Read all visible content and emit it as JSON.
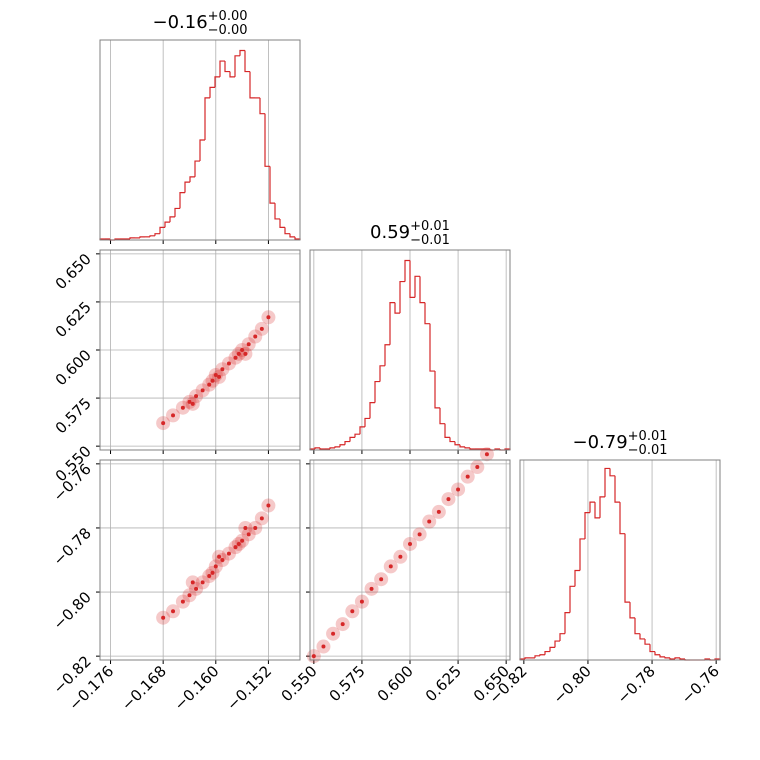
{
  "chart_data": {
    "type": "corner",
    "color": "#d62728",
    "grid": true,
    "params": [
      {
        "title": "−0.16",
        "title_sup": "+0.00",
        "title_sub": "−0.00",
        "lim": [
          -0.1776,
          -0.1472
        ],
        "ticks": [
          {
            "value": -0.176,
            "label": "−0.176"
          },
          {
            "value": -0.168,
            "label": "−0.168"
          },
          {
            "value": -0.16,
            "label": "−0.160"
          },
          {
            "value": -0.152,
            "label": "−0.152"
          }
        ],
        "hist": {
          "ylim": [
            0,
            190
          ],
          "bins": [
            -0.1776,
            -0.17684,
            -0.17608,
            -0.17532,
            -0.17456,
            -0.1738,
            -0.17304,
            -0.17228,
            -0.17152,
            -0.17076,
            -0.17,
            -0.16924,
            -0.16848,
            -0.16772,
            -0.16696,
            -0.1662,
            -0.16544,
            -0.16468,
            -0.16392,
            -0.16316,
            -0.1624,
            -0.16164,
            -0.16088,
            -0.16012,
            -0.15936,
            -0.1586,
            -0.15784,
            -0.15708,
            -0.15632,
            -0.15556,
            -0.1548,
            -0.15404,
            -0.15328,
            -0.15252,
            -0.15176,
            -0.151,
            -0.15024,
            -0.14948,
            -0.14872,
            -0.14796,
            -0.1472
          ],
          "counts": [
            1,
            1,
            0,
            1,
            1,
            1,
            2,
            2,
            3,
            3,
            4,
            6,
            12,
            17,
            22,
            30,
            45,
            55,
            60,
            75,
            95,
            135,
            145,
            155,
            170,
            160,
            155,
            175,
            180,
            160,
            135,
            135,
            120,
            70,
            35,
            20,
            12,
            6,
            3,
            1
          ]
        }
      },
      {
        "title": "0.59",
        "title_sup": "+0.01",
        "title_sub": "−0.01",
        "lim": [
          0.548,
          0.652
        ],
        "ticks": [
          {
            "value": 0.55,
            "label": "0.550"
          },
          {
            "value": 0.575,
            "label": "0.575"
          },
          {
            "value": 0.6,
            "label": "0.600"
          },
          {
            "value": 0.625,
            "label": "0.625"
          },
          {
            "value": 0.65,
            "label": "0.650"
          }
        ],
        "hist": {
          "ylim": [
            0,
            190
          ],
          "bins": [
            0.548,
            0.5506,
            0.5532,
            0.5558,
            0.5584,
            0.561,
            0.5636,
            0.5662,
            0.5688,
            0.5714,
            0.574,
            0.5766,
            0.5792,
            0.5818,
            0.5844,
            0.587,
            0.5896,
            0.5922,
            0.5948,
            0.5974,
            0.6,
            0.6026,
            0.6052,
            0.6078,
            0.6104,
            0.613,
            0.6156,
            0.6182,
            0.6208,
            0.6234,
            0.626,
            0.6286,
            0.6312,
            0.6338,
            0.6364,
            0.639,
            0.6416,
            0.6442,
            0.6468,
            0.6494,
            0.652
          ],
          "counts": [
            1,
            2,
            1,
            1,
            2,
            3,
            5,
            8,
            12,
            15,
            22,
            30,
            45,
            65,
            80,
            100,
            140,
            130,
            160,
            180,
            145,
            165,
            140,
            120,
            75,
            40,
            25,
            12,
            8,
            5,
            3,
            2,
            1,
            1,
            1,
            1,
            0,
            1,
            0,
            1
          ]
        }
      },
      {
        "title": "−0.79",
        "title_sup": "+0.01",
        "title_sub": "−0.01",
        "lim": [
          -0.8212,
          -0.7588
        ],
        "ticks": [
          {
            "value": -0.82,
            "label": "−0.82"
          },
          {
            "value": -0.8,
            "label": "−0.80"
          },
          {
            "value": -0.78,
            "label": "−0.78"
          },
          {
            "value": -0.76,
            "label": "−0.76"
          }
        ],
        "hist": {
          "ylim": [
            0,
            190
          ],
          "bins": [
            -0.8212,
            -0.81964,
            -0.81808,
            -0.81652,
            -0.81496,
            -0.8134,
            -0.81184,
            -0.81028,
            -0.80872,
            -0.80716,
            -0.8056,
            -0.80404,
            -0.80248,
            -0.80092,
            -0.79936,
            -0.7978,
            -0.79624,
            -0.79468,
            -0.79312,
            -0.79156,
            -0.79,
            -0.78844,
            -0.78688,
            -0.78532,
            -0.78376,
            -0.7822,
            -0.78064,
            -0.77908,
            -0.77752,
            -0.77596,
            -0.7744,
            -0.77284,
            -0.77128,
            -0.76972,
            -0.76816,
            -0.7666,
            -0.76504,
            -0.76348,
            -0.76192,
            -0.76036,
            -0.7588
          ],
          "counts": [
            1,
            2,
            2,
            4,
            5,
            8,
            12,
            18,
            25,
            45,
            70,
            85,
            115,
            140,
            150,
            135,
            155,
            182,
            175,
            150,
            120,
            55,
            40,
            25,
            20,
            15,
            8,
            5,
            3,
            2,
            1,
            2,
            1,
            0,
            0,
            0,
            0,
            1,
            0,
            1
          ]
        }
      }
    ],
    "pairs": [
      {
        "x": [
          -0.168,
          -0.1665,
          -0.165,
          -0.164,
          -0.163,
          -0.162,
          -0.161,
          -0.1605,
          -0.16,
          -0.159,
          -0.158,
          -0.157,
          -0.1565,
          -0.156,
          -0.155,
          -0.154,
          -0.153,
          -0.152,
          -0.1635,
          -0.1595,
          -0.1555
        ],
        "y": [
          0.562,
          0.566,
          0.57,
          0.573,
          0.576,
          0.579,
          0.582,
          0.584,
          0.587,
          0.59,
          0.593,
          0.596,
          0.598,
          0.6,
          0.603,
          0.607,
          0.611,
          0.617,
          0.572,
          0.586,
          0.598
        ]
      },
      {
        "x": [
          -0.168,
          -0.1665,
          -0.165,
          -0.164,
          -0.163,
          -0.162,
          -0.161,
          -0.1605,
          -0.16,
          -0.159,
          -0.158,
          -0.157,
          -0.1565,
          -0.156,
          -0.155,
          -0.154,
          -0.153,
          -0.152,
          -0.1635,
          -0.1595,
          -0.1555
        ],
        "y": [
          -0.808,
          -0.806,
          -0.803,
          -0.801,
          -0.799,
          -0.797,
          -0.795,
          -0.794,
          -0.792,
          -0.79,
          -0.788,
          -0.786,
          -0.785,
          -0.784,
          -0.782,
          -0.78,
          -0.777,
          -0.773,
          -0.797,
          -0.789,
          -0.78
        ]
      },
      {
        "x": [
          0.55,
          0.555,
          0.56,
          0.565,
          0.57,
          0.575,
          0.58,
          0.585,
          0.59,
          0.595,
          0.6,
          0.605,
          0.61,
          0.615,
          0.62,
          0.625,
          0.63,
          0.635,
          0.64
        ],
        "y": [
          -0.82,
          -0.817,
          -0.813,
          -0.81,
          -0.806,
          -0.803,
          -0.799,
          -0.796,
          -0.792,
          -0.789,
          -0.785,
          -0.782,
          -0.778,
          -0.775,
          -0.771,
          -0.768,
          -0.764,
          -0.761,
          -0.757
        ]
      }
    ]
  }
}
